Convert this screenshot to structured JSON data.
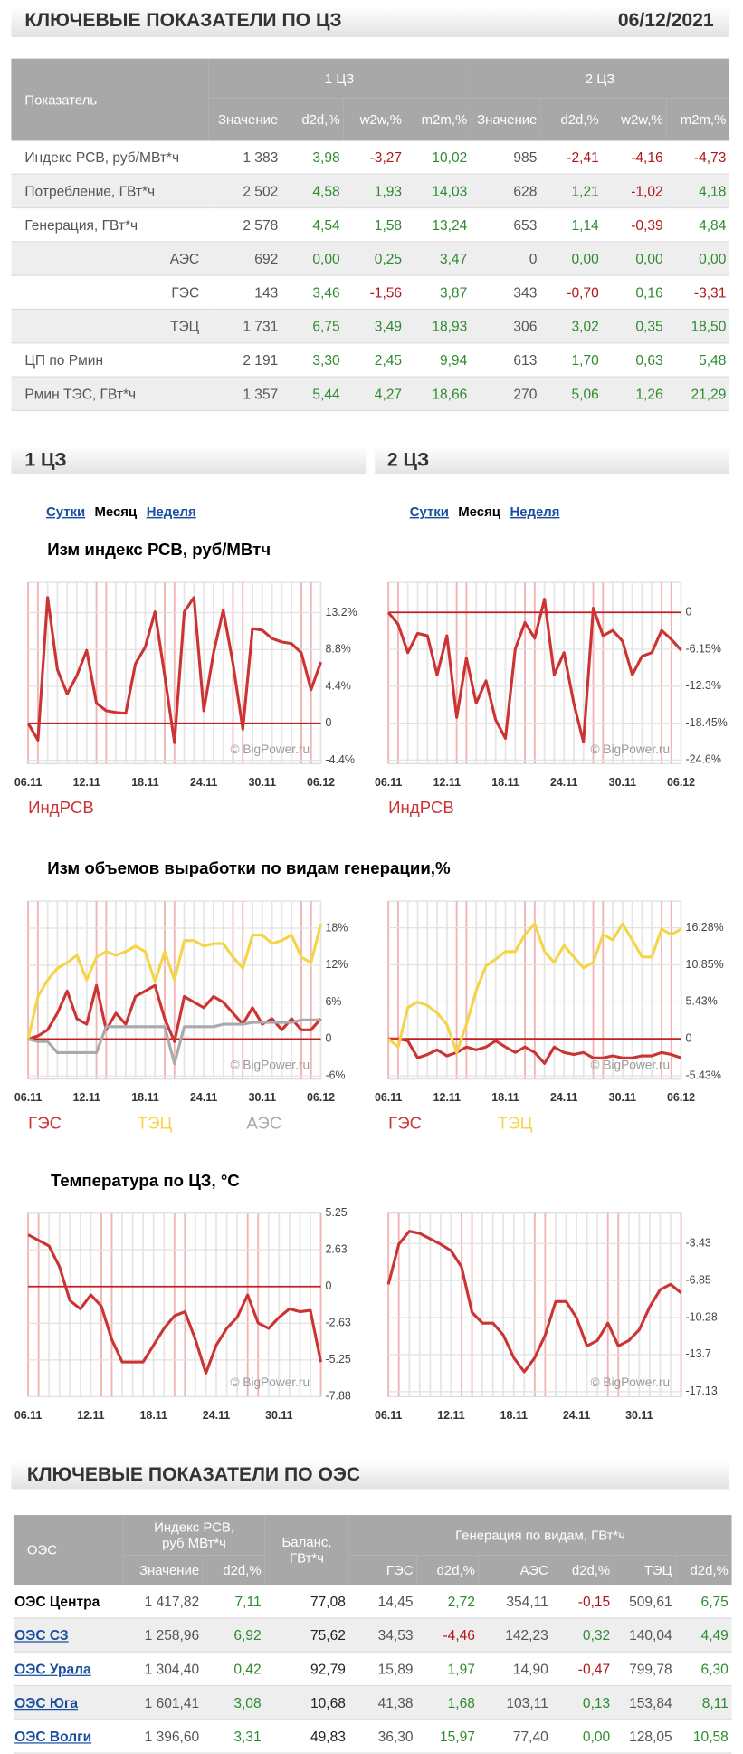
{
  "header": {
    "title": "КЛЮЧЕВЫЕ ПОКАЗАТЕЛИ ПО ЦЗ",
    "date": "06/12/2021"
  },
  "table": {
    "label_header": "Показатель",
    "groups": [
      "1 ЦЗ",
      "2 ЦЗ"
    ],
    "columns": [
      "Значение",
      "d2d,%",
      "w2w,%",
      "m2m,%",
      "Значение",
      "d2d,%",
      "w2w,%",
      "m2m,%"
    ],
    "rows": [
      [
        "Индекс РСВ, руб/МВт*ч",
        "1 383",
        "3,98",
        "-3,27",
        "10,02",
        "985",
        "-2,41",
        "-4,16",
        "-4,73"
      ],
      [
        "Потребление, ГВт*ч",
        "2 502",
        "4,58",
        "1,93",
        "14,03",
        "628",
        "1,21",
        "-1,02",
        "4,18"
      ],
      [
        "Генерация, ГВт*ч",
        "2 578",
        "4,54",
        "1,58",
        "13,24",
        "653",
        "1,14",
        "-0,39",
        "4,84"
      ],
      [
        "АЭС",
        "692",
        "0,00",
        "0,25",
        "3,47",
        "0",
        "0,00",
        "0,00",
        "0,00"
      ],
      [
        "ГЭС",
        "143",
        "3,46",
        "-1,56",
        "3,87",
        "343",
        "-0,70",
        "0,16",
        "-3,31"
      ],
      [
        "ТЭЦ",
        "1 731",
        "6,75",
        "3,49",
        "18,93",
        "306",
        "3,02",
        "0,35",
        "18,50"
      ],
      [
        "ЦП по Рмин",
        "2 191",
        "3,30",
        "2,45",
        "9,94",
        "613",
        "1,70",
        "0,63",
        "5,48"
      ],
      [
        "Рмин ТЭС, ГВт*ч",
        "1 357",
        "5,44",
        "4,27",
        "18,66",
        "270",
        "5,06",
        "1,26",
        "21,29"
      ]
    ]
  },
  "sections": [
    "1 ЦЗ",
    "2 ЦЗ"
  ],
  "tabs": [
    "Сутки",
    "Месяц",
    "Неделя"
  ],
  "chart_data": [
    {
      "type": "line",
      "title": "Изм индекс РСВ, руб/МВтч",
      "watermark": "© BigPower.ru",
      "categories": [
        "06.11",
        null,
        null,
        null,
        null,
        null,
        "12.11",
        null,
        null,
        null,
        null,
        null,
        "18.11",
        null,
        null,
        null,
        null,
        null,
        "24.11",
        null,
        null,
        null,
        null,
        null,
        "30.11",
        null,
        null,
        null,
        null,
        null,
        "06.12"
      ],
      "ylim": [
        -4.8,
        16.8
      ],
      "yticks": [
        {
          "value": 13.2,
          "label": "13.2%"
        },
        {
          "value": 8.8,
          "label": "8.8%"
        },
        {
          "value": 4.4,
          "label": "4.4%"
        },
        0,
        {
          "value": -4.4,
          "label": "-4.4%"
        }
      ],
      "series": [
        {
          "name": "ИндРСВ",
          "color": "#cc3333",
          "values": [
            0,
            -2,
            15,
            6.4,
            3.5,
            5.7,
            8.7,
            2.4,
            1.5,
            1.3,
            1.2,
            7.1,
            9.1,
            13.3,
            5.7,
            -2.3,
            13.3,
            15,
            1.5,
            8.4,
            13.5,
            7.1,
            -0.7,
            11.3,
            11.1,
            10.1,
            9.7,
            9.5,
            8.4,
            4,
            7.3
          ]
        }
      ]
    },
    {
      "type": "line",
      "watermark": "© BigPower.ru",
      "categories": [
        "06.11",
        null,
        null,
        null,
        null,
        null,
        "12.11",
        null,
        null,
        null,
        null,
        null,
        "18.11",
        null,
        null,
        null,
        null,
        null,
        "24.11",
        null,
        null,
        null,
        null,
        null,
        "30.11",
        null,
        null,
        null,
        null,
        null,
        "06.12"
      ],
      "ylim": [
        -25.2,
        5.0
      ],
      "yticks": [
        0,
        {
          "value": -6.15,
          "label": "-6.15%"
        },
        {
          "value": -12.3,
          "label": "-12.3%"
        },
        {
          "value": -18.45,
          "label": "-18.45%"
        },
        {
          "value": -24.6,
          "label": "-24.6%"
        }
      ],
      "series": [
        {
          "name": "ИндРСВ",
          "color": "#cc3333",
          "values": [
            0,
            -2,
            -6.7,
            -3.5,
            -3.9,
            -10.4,
            -3.9,
            -17.5,
            -7.6,
            -15.1,
            -11.4,
            -17.9,
            -21,
            -6.1,
            -1.7,
            -4.3,
            2.2,
            -10.4,
            -6.7,
            -15.1,
            -21.6,
            0.7,
            -3.9,
            -3,
            -4.8,
            -10.4,
            -7.3,
            -6.7,
            -3,
            -4.5,
            -6.3
          ]
        }
      ]
    },
    {
      "type": "line",
      "title": "Изм объемов выработки по видам генерации,%",
      "watermark": "© BigPower.ru",
      "categories": [
        "06.11",
        null,
        null,
        null,
        null,
        null,
        "12.11",
        null,
        null,
        null,
        null,
        null,
        "18.11",
        null,
        null,
        null,
        null,
        null,
        "24.11",
        null,
        null,
        null,
        null,
        null,
        "30.11",
        null,
        null,
        null,
        null,
        null,
        "06.12"
      ],
      "ylim": [
        -6.5,
        22.4
      ],
      "yticks": [
        {
          "value": 18,
          "label": "18%"
        },
        {
          "value": 12,
          "label": "12%"
        },
        {
          "value": 6,
          "label": "6%"
        },
        0,
        {
          "value": -6,
          "label": "-6%"
        }
      ],
      "series": [
        {
          "name": "ГЭС",
          "color": "#cc3333",
          "values": [
            0,
            0.5,
            1.5,
            4.2,
            7.8,
            3.3,
            2.4,
            8.7,
            1.5,
            4.2,
            2.4,
            6.9,
            7.8,
            8.7,
            3.3,
            -0.4,
            6.9,
            6,
            5.1,
            6.9,
            6,
            4.2,
            2.4,
            5.1,
            2.4,
            3.3,
            1.5,
            3.3,
            1.5,
            1.5,
            3.3
          ]
        },
        {
          "name": "ТЭЦ",
          "color": "#f4d548",
          "values": [
            0,
            6.9,
            9.6,
            11.5,
            12.4,
            13.6,
            9.6,
            13.3,
            14.2,
            13.6,
            14.2,
            15.1,
            14.2,
            9.3,
            14.2,
            9.6,
            16,
            16,
            15.1,
            15.5,
            15.5,
            13.3,
            11.5,
            16.9,
            16.9,
            15.5,
            16,
            16.9,
            13.3,
            12.4,
            18.7
          ]
        },
        {
          "name": "АЭС",
          "color": "#aaaaaa",
          "values": [
            0,
            -0.4,
            -0.4,
            -2.2,
            -2.2,
            -2.2,
            -2.2,
            -2.2,
            2,
            2,
            2,
            2,
            2,
            2,
            2,
            -4,
            2,
            2,
            2,
            2,
            2.4,
            2.4,
            2.4,
            2.7,
            2.7,
            2.7,
            2.7,
            2.7,
            3.1,
            3.1,
            3.1
          ]
        }
      ]
    },
    {
      "type": "line",
      "watermark": "© BigPower.ru",
      "categories": [
        "06.11",
        null,
        null,
        null,
        null,
        null,
        "12.11",
        null,
        null,
        null,
        null,
        null,
        "18.11",
        null,
        null,
        null,
        null,
        null,
        "24.11",
        null,
        null,
        null,
        null,
        null,
        "30.11",
        null,
        null,
        null,
        null,
        null,
        "06.12"
      ],
      "ylim": [
        -5.9,
        20.2
      ],
      "yticks": [
        {
          "value": 16.28,
          "label": "16.28%"
        },
        {
          "value": 10.85,
          "label": "10.85%"
        },
        {
          "value": 5.43,
          "label": "5.43%"
        },
        0,
        {
          "value": -5.43,
          "label": "-5.43%"
        }
      ],
      "series": [
        {
          "name": "ГЭС",
          "color": "#cc3333",
          "values": [
            0,
            0,
            -0.3,
            -2.8,
            -2.3,
            -1.6,
            -2.5,
            -2,
            -1.2,
            -1.6,
            -1.2,
            -0.3,
            -1.2,
            -2,
            -1.2,
            -2,
            -3.6,
            -1.2,
            -2,
            -2.3,
            -2,
            -2.8,
            -2.8,
            -2.5,
            -2.8,
            -2.8,
            -2.5,
            -2.5,
            -2,
            -2.3,
            -2.8
          ]
        },
        {
          "name": "ТЭЦ",
          "color": "#f4d548",
          "values": [
            0,
            -1.2,
            4.6,
            5.4,
            4.9,
            3.8,
            2.1,
            -2,
            2.1,
            7.1,
            10.7,
            11.7,
            12.8,
            12.8,
            15.3,
            16.9,
            12.8,
            11.2,
            13.7,
            12,
            10.4,
            11.2,
            15.3,
            14.5,
            16.9,
            14.5,
            12,
            12,
            16.1,
            15.3,
            16.1
          ]
        }
      ]
    },
    {
      "type": "line",
      "title": "Температура по ЦЗ, °C",
      "watermark": "© BigPower.ru",
      "categories": [
        "06.11",
        null,
        null,
        null,
        null,
        null,
        "12.11",
        null,
        null,
        null,
        null,
        null,
        "18.11",
        null,
        null,
        null,
        null,
        null,
        "24.11",
        null,
        null,
        null,
        null,
        null,
        "30.11",
        null,
        null,
        null,
        null
      ],
      "ylim": [
        -7.88,
        5.25
      ],
      "yticks": [
        5.25,
        2.63,
        0,
        -2.63,
        -5.25,
        -7.88
      ],
      "series": [
        {
          "color": "#cc3333",
          "values": [
            3.7,
            3.3,
            2.9,
            1.4,
            -1,
            -1.6,
            -0.6,
            -1.4,
            -3.8,
            -5.4,
            -5.4,
            -5.4,
            -4.2,
            -3,
            -2.1,
            -1.8,
            -3.8,
            -6.2,
            -4.2,
            -3,
            -2.2,
            -0.6,
            -2.6,
            -3,
            -2.2,
            -1.6,
            -1.8,
            -1.7,
            -5.4
          ]
        }
      ]
    },
    {
      "type": "line",
      "watermark": "© BigPower.ru",
      "categories": [
        "06.11",
        null,
        null,
        null,
        null,
        null,
        "12.11",
        null,
        null,
        null,
        null,
        null,
        "18.11",
        null,
        null,
        null,
        null,
        null,
        "24.11",
        null,
        null,
        null,
        null,
        null,
        "30.11",
        null,
        null,
        null,
        null
      ],
      "ylim": [
        -17.6,
        -0.62
      ],
      "yticks": [
        -3.43,
        -6.85,
        -10.28,
        -13.7,
        -17.13
      ],
      "series": [
        {
          "color": "#cc3333",
          "values": [
            -7.2,
            -3.5,
            -2.3,
            -2.5,
            -3,
            -3.5,
            -4.1,
            -5.6,
            -9.8,
            -10.8,
            -10.8,
            -11.9,
            -14,
            -15.3,
            -14,
            -11.9,
            -8.8,
            -8.8,
            -10.3,
            -12.9,
            -12.4,
            -10.8,
            -12.9,
            -12.4,
            -11.4,
            -9.3,
            -7.7,
            -7.2,
            -8
          ]
        }
      ]
    }
  ],
  "oes": {
    "title": "КЛЮЧЕВЫЕ ПОКАЗАТЕЛИ ПО ОЭС",
    "label_header": "ОЭС",
    "index_header": "Индекс РСВ, руб МВт*ч",
    "balance_header": "Баланс, ГВт*ч",
    "gen_header": "Генерация по видам, ГВт*ч",
    "columns": [
      "Значение",
      "d2d,%",
      "ГЭС",
      "d2d,%",
      "АЭС",
      "d2d,%",
      "ТЭЦ",
      "d2d,%"
    ],
    "rows": [
      [
        "ОЭС Центра",
        "1 417,82",
        "7,11",
        "77,08",
        "14,45",
        "2,72",
        "354,11",
        "-0,15",
        "509,61",
        "6,75"
      ],
      [
        "ОЭС СЗ",
        "1 258,96",
        "6,92",
        "75,62",
        "34,53",
        "-4,46",
        "142,23",
        "0,32",
        "140,04",
        "4,49"
      ],
      [
        "ОЭС Урала",
        "1 304,40",
        "0,42",
        "92,79",
        "15,89",
        "1,97",
        "14,90",
        "-0,47",
        "799,78",
        "6,30"
      ],
      [
        "ОЭС Юга",
        "1 601,41",
        "3,08",
        "10,68",
        "41,38",
        "1,68",
        "103,11",
        "0,13",
        "153,84",
        "8,11"
      ],
      [
        "ОЭС Волги",
        "1 396,60",
        "3,31",
        "49,83",
        "36,30",
        "15,97",
        "77,40",
        "0,00",
        "128,05",
        "10,58"
      ]
    ]
  }
}
